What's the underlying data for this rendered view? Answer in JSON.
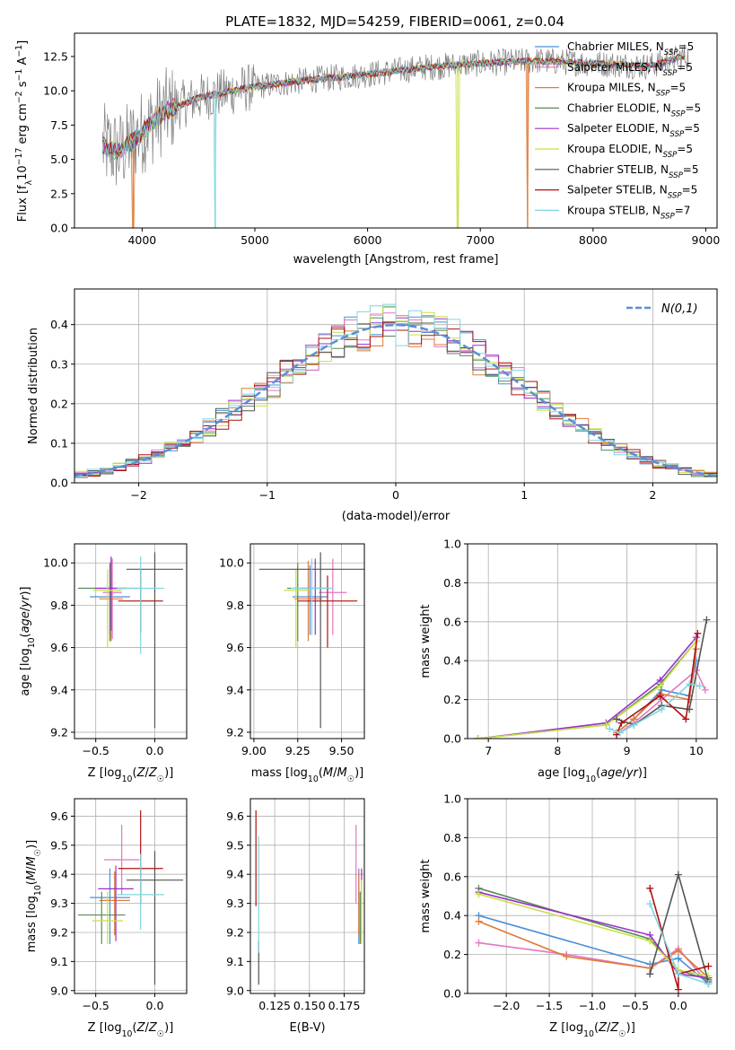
{
  "title": "PLATE=1832, MJD=54259, FIBERID=0061, z=0.04",
  "colors": {
    "Chabrier MILES": "#4a90d9",
    "Salpeter MILES": "#e377c2",
    "Kroupa MILES": "#e07b39",
    "Chabrier ELODIE": "#5a8a5a",
    "Salpeter ELODIE": "#9b30c8",
    "Kroupa ELODIE": "#c8e04a",
    "Chabrier STELIB": "#555555",
    "Salpeter STELIB": "#b01010",
    "Kroupa STELIB": "#7fd6df",
    "gaussian": "#5b8fd6"
  },
  "chart_data": [
    {
      "id": "spectrum",
      "type": "line",
      "xlabel": "wavelength [Angstrom, rest frame]",
      "ylabel": "Flux [f_λ 10^-17 erg cm^-2 s^-1 A^-1]",
      "xlim": [
        3400,
        9100
      ],
      "ylim": [
        0,
        14.2
      ],
      "xticks": [
        4000,
        5000,
        6000,
        7000,
        8000,
        9000
      ],
      "yticks": [
        0.0,
        2.5,
        5.0,
        7.5,
        10.0,
        12.5
      ],
      "legend_position": "top-right",
      "legend": [
        {
          "name": "Chabrier MILES",
          "nssp": "5"
        },
        {
          "name": "Salpeter MILES",
          "nssp": "5"
        },
        {
          "name": "Kroupa MILES",
          "nssp": "5"
        },
        {
          "name": "Chabrier ELODIE",
          "nssp": "5"
        },
        {
          "name": "Salpeter ELODIE",
          "nssp": "5"
        },
        {
          "name": "Kroupa ELODIE",
          "nssp": "5"
        },
        {
          "name": "Chabrier STELIB",
          "nssp": "5"
        },
        {
          "name": "Salpeter STELIB",
          "nssp": "5"
        },
        {
          "name": "Kroupa STELIB",
          "nssp": "7"
        }
      ],
      "data_trend": {
        "x": [
          3650,
          3800,
          4000,
          4200,
          4500,
          5000,
          5500,
          6000,
          6500,
          7000,
          7500,
          8000,
          8500,
          8800
        ],
        "y": [
          6.0,
          5.5,
          7.0,
          8.5,
          9.5,
          10.3,
          10.8,
          11.2,
          11.7,
          12.0,
          12.2,
          12.0,
          11.8,
          12.5
        ]
      },
      "model_dropouts": [
        {
          "series": "Kroupa MILES",
          "x": 3920
        },
        {
          "series": "Kroupa STELIB",
          "x": 4650
        },
        {
          "series": "Kroupa ELODIE",
          "x": 6800
        },
        {
          "series": "Kroupa MILES",
          "x": 7420
        }
      ]
    },
    {
      "id": "residuals",
      "type": "bar",
      "xlabel": "(data-model)/error",
      "ylabel": "Normed distribution",
      "xlim": [
        -2.5,
        2.5
      ],
      "ylim": [
        0,
        0.49
      ],
      "xticks": [
        -2,
        -1,
        0,
        1,
        2
      ],
      "yticks": [
        0.0,
        0.1,
        0.2,
        0.3,
        0.4
      ],
      "legend_label": "N(0,1)",
      "legend_position": "top-right"
    },
    {
      "id": "age-vs-Z",
      "type": "scatter",
      "xlabel": "Z [log10(Z/Z☉)]",
      "ylabel": "age  [log10(age/yr)]",
      "xlim": [
        -0.68,
        0.27
      ],
      "ylim": [
        9.17,
        10.09
      ],
      "xticks": [
        -0.5,
        0.0
      ],
      "yticks": [
        9.2,
        9.4,
        9.6,
        9.8,
        10.0
      ],
      "points": [
        {
          "series": "Chabrier MILES",
          "x": -0.38,
          "y": 9.84,
          "xerr": 0.17,
          "yerr": [
            0.18,
            0.15
          ]
        },
        {
          "series": "Salpeter MILES",
          "x": -0.36,
          "y": 9.86,
          "xerr": 0.08,
          "yerr": [
            0.22,
            0.16
          ]
        },
        {
          "series": "Kroupa MILES",
          "x": -0.37,
          "y": 9.83,
          "xerr": 0.1,
          "yerr": [
            0.2,
            0.18
          ]
        },
        {
          "series": "Chabrier ELODIE",
          "x": -0.38,
          "y": 9.88,
          "xerr": 0.27,
          "yerr": [
            0.25,
            0.12
          ]
        },
        {
          "series": "Salpeter ELODIE",
          "x": -0.37,
          "y": 9.88,
          "xerr": 0.13,
          "yerr": [
            0.2,
            0.15
          ]
        },
        {
          "series": "Kroupa ELODIE",
          "x": -0.4,
          "y": 9.87,
          "xerr": 0.12,
          "yerr": [
            0.27,
            0.1
          ]
        },
        {
          "series": "Chabrier STELIB",
          "x": 0.0,
          "y": 9.97,
          "xerr": 0.24,
          "yerr": [
            0.75,
            0.08
          ]
        },
        {
          "series": "Salpeter STELIB",
          "x": -0.12,
          "y": 9.82,
          "xerr": 0.19,
          "yerr": [
            0.15,
            0.15
          ]
        },
        {
          "series": "Kroupa STELIB",
          "x": -0.12,
          "y": 9.88,
          "xerr": 0.2,
          "yerr": [
            0.31,
            0.15
          ]
        }
      ]
    },
    {
      "id": "age-vs-mass",
      "type": "scatter",
      "xlabel": "mass [log10(M/M☉)]",
      "ylabel": "",
      "xlim": [
        8.98,
        9.63
      ],
      "ylim": [
        9.17,
        10.09
      ],
      "xticks": [
        9.0,
        9.25,
        9.5
      ],
      "yticks": [
        9.2,
        9.4,
        9.6,
        9.8,
        10.0
      ],
      "points": [
        {
          "series": "Chabrier MILES",
          "x": 9.32,
          "y": 9.84,
          "xerr": 0.1,
          "yerr": [
            0.18,
            0.15
          ]
        },
        {
          "series": "Salpeter MILES",
          "x": 9.45,
          "y": 9.86,
          "xerr": 0.08,
          "yerr": [
            0.2,
            0.16
          ]
        },
        {
          "series": "Kroupa MILES",
          "x": 9.31,
          "y": 9.83,
          "xerr": 0.08,
          "yerr": [
            0.2,
            0.18
          ]
        },
        {
          "series": "Chabrier ELODIE",
          "x": 9.25,
          "y": 9.88,
          "xerr": 0.06,
          "yerr": [
            0.25,
            0.12
          ]
        },
        {
          "series": "Salpeter ELODIE",
          "x": 9.35,
          "y": 9.88,
          "xerr": 0.08,
          "yerr": [
            0.22,
            0.14
          ]
        },
        {
          "series": "Kroupa ELODIE",
          "x": 9.24,
          "y": 9.87,
          "xerr": 0.07,
          "yerr": [
            0.27,
            0.1
          ]
        },
        {
          "series": "Chabrier STELIB",
          "x": 9.38,
          "y": 9.97,
          "xerr": 0.35,
          "yerr": [
            0.75,
            0.08
          ]
        },
        {
          "series": "Salpeter STELIB",
          "x": 9.42,
          "y": 9.82,
          "xerr": 0.17,
          "yerr": [
            0.22,
            0.12
          ]
        },
        {
          "series": "Kroupa STELIB",
          "x": 9.33,
          "y": 9.88,
          "xerr": 0.12,
          "yerr": [
            0.22,
            0.14
          ]
        }
      ]
    },
    {
      "id": "weight-vs-age",
      "type": "line",
      "xlabel": "age  [log10(age/yr)]",
      "ylabel": "mass weight",
      "xlim": [
        6.7,
        10.3
      ],
      "ylim": [
        0,
        1
      ],
      "xticks": [
        7,
        8,
        9,
        10
      ],
      "yticks": [
        0.0,
        0.2,
        0.4,
        0.6,
        0.8,
        1.0
      ],
      "series": [
        {
          "name": "Chabrier MILES",
          "x": [
            8.85,
            9.1,
            9.5,
            9.9,
            10.0
          ],
          "y": [
            0.03,
            0.1,
            0.25,
            0.22,
            0.4
          ]
        },
        {
          "name": "Salpeter MILES",
          "x": [
            8.85,
            9.1,
            9.5,
            10.0,
            10.13
          ],
          "y": [
            0.02,
            0.08,
            0.2,
            0.35,
            0.25
          ]
        },
        {
          "name": "Kroupa MILES",
          "x": [
            8.85,
            9.1,
            9.48,
            9.9,
            10.0
          ],
          "y": [
            0.03,
            0.1,
            0.23,
            0.2,
            0.46
          ]
        },
        {
          "name": "Chabrier ELODIE",
          "x": [
            6.85,
            8.7,
            9.48,
            10.0
          ],
          "y": [
            0.0,
            0.07,
            0.28,
            0.5
          ]
        },
        {
          "name": "Salpeter ELODIE",
          "x": [
            6.85,
            8.7,
            9.48,
            10.0
          ],
          "y": [
            0.0,
            0.08,
            0.3,
            0.52
          ]
        },
        {
          "name": "Kroupa ELODIE",
          "x": [
            6.85,
            8.7,
            9.48,
            10.0
          ],
          "y": [
            0.0,
            0.07,
            0.27,
            0.5
          ]
        },
        {
          "name": "Chabrier STELIB",
          "x": [
            8.85,
            9.1,
            9.5,
            9.9,
            10.15
          ],
          "y": [
            0.1,
            0.07,
            0.17,
            0.15,
            0.61
          ]
        },
        {
          "name": "Salpeter STELIB",
          "x": [
            8.85,
            8.92,
            9.48,
            9.85,
            10.02
          ],
          "y": [
            0.02,
            0.08,
            0.22,
            0.1,
            0.54
          ]
        },
        {
          "name": "Kroupa STELIB",
          "x": [
            8.75,
            8.9,
            9.1,
            9.5,
            9.9,
            10.05
          ],
          "y": [
            0.05,
            0.03,
            0.07,
            0.15,
            0.28,
            0.27
          ]
        }
      ]
    },
    {
      "id": "mass-vs-Z",
      "type": "scatter",
      "xlabel": "Z [log10(Z/Z☉)]",
      "ylabel": "mass [log10(M/M☉)]",
      "xlim": [
        -0.68,
        0.27
      ],
      "ylim": [
        8.99,
        9.66
      ],
      "xticks": [
        -0.5,
        0.0
      ],
      "yticks": [
        9.0,
        9.1,
        9.2,
        9.3,
        9.4,
        9.5,
        9.6
      ],
      "points": [
        {
          "series": "Chabrier MILES",
          "x": -0.38,
          "y": 9.32,
          "xerr": 0.17,
          "yerr": [
            0.16,
            0.1
          ]
        },
        {
          "series": "Salpeter MILES",
          "x": -0.28,
          "y": 9.45,
          "xerr": 0.15,
          "yerr": [
            0.12,
            0.12
          ]
        },
        {
          "series": "Kroupa MILES",
          "x": -0.34,
          "y": 9.31,
          "xerr": 0.13,
          "yerr": [
            0.12,
            0.1
          ]
        },
        {
          "series": "Chabrier ELODIE",
          "x": -0.45,
          "y": 9.26,
          "xerr": 0.2,
          "yerr": [
            0.1,
            0.08
          ]
        },
        {
          "series": "Salpeter ELODIE",
          "x": -0.33,
          "y": 9.35,
          "xerr": 0.15,
          "yerr": [
            0.18,
            0.08
          ]
        },
        {
          "series": "Kroupa ELODIE",
          "x": -0.4,
          "y": 9.24,
          "xerr": 0.13,
          "yerr": [
            0.08,
            0.1
          ]
        },
        {
          "series": "Chabrier STELIB",
          "x": 0.0,
          "y": 9.38,
          "xerr": 0.24,
          "yerr": [
            0.36,
            0.1
          ]
        },
        {
          "series": "Salpeter STELIB",
          "x": -0.12,
          "y": 9.42,
          "xerr": 0.19,
          "yerr": [
            0.12,
            0.2
          ]
        },
        {
          "series": "Kroupa STELIB",
          "x": -0.12,
          "y": 9.33,
          "xerr": 0.2,
          "yerr": [
            0.12,
            0.14
          ]
        }
      ]
    },
    {
      "id": "mass-vs-ebv",
      "type": "scatter",
      "xlabel": "E(B-V)",
      "ylabel": "",
      "xlim": [
        0.1075,
        0.1895
      ],
      "ylim": [
        8.99,
        9.66
      ],
      "xticks": [
        0.125,
        0.15,
        0.175
      ],
      "xticklabels": [
        "0.125",
        "0.150",
        "0.175"
      ],
      "yticks": [
        9.0,
        9.1,
        9.2,
        9.3,
        9.4,
        9.5,
        9.6
      ],
      "points": [
        {
          "series": "Chabrier MILES",
          "x": 0.1855,
          "y": 9.32,
          "xerr": 0.0,
          "yerr": [
            0.16,
            0.1
          ]
        },
        {
          "series": "Salpeter MILES",
          "x": 0.1835,
          "y": 9.45,
          "xerr": 0.0,
          "yerr": [
            0.15,
            0.12
          ]
        },
        {
          "series": "Kroupa MILES",
          "x": 0.1855,
          "y": 9.31,
          "xerr": 0.0,
          "yerr": [
            0.12,
            0.1
          ]
        },
        {
          "series": "Chabrier ELODIE",
          "x": 0.1865,
          "y": 9.26,
          "xerr": 0.0,
          "yerr": [
            0.1,
            0.08
          ]
        },
        {
          "series": "Salpeter ELODIE",
          "x": 0.1875,
          "y": 9.35,
          "xerr": 0.0,
          "yerr": [
            0.18,
            0.07
          ]
        },
        {
          "series": "Kroupa ELODIE",
          "x": 0.1875,
          "y": 9.24,
          "xerr": 0.0,
          "yerr": [
            0.08,
            0.14
          ]
        },
        {
          "series": "Chabrier STELIB",
          "x": 0.1135,
          "y": 9.1,
          "xerr": 0.0,
          "yerr": [
            0.08,
            0.07
          ]
        },
        {
          "series": "Salpeter STELIB",
          "x": 0.1115,
          "y": 9.45,
          "xerr": 0.0,
          "yerr": [
            0.16,
            0.17
          ]
        },
        {
          "series": "Kroupa STELIB",
          "x": 0.1135,
          "y": 9.33,
          "xerr": 0.0,
          "yerr": [
            0.2,
            0.2
          ]
        }
      ]
    },
    {
      "id": "weight-vs-Z",
      "type": "line",
      "xlabel": "Z [log10(Z/Z☉)]",
      "ylabel": "mass weight",
      "xlim": [
        -2.45,
        0.45
      ],
      "ylim": [
        0,
        1
      ],
      "xticks": [
        -2.0,
        -1.5,
        -1.0,
        -0.5,
        0.0
      ],
      "yticks": [
        0.0,
        0.2,
        0.4,
        0.6,
        0.8,
        1.0
      ],
      "series": [
        {
          "name": "Chabrier MILES",
          "x": [
            -2.32,
            -0.33,
            0.0,
            0.35
          ],
          "y": [
            0.4,
            0.15,
            0.18,
            0.05
          ]
        },
        {
          "name": "Salpeter MILES",
          "x": [
            -2.32,
            -1.3,
            -0.33,
            0.0,
            0.35
          ],
          "y": [
            0.26,
            0.2,
            0.13,
            0.23,
            0.05
          ]
        },
        {
          "name": "Kroupa MILES",
          "x": [
            -2.32,
            -1.3,
            -0.33,
            0.0,
            0.35
          ],
          "y": [
            0.37,
            0.19,
            0.13,
            0.22,
            0.08
          ]
        },
        {
          "name": "Chabrier ELODIE",
          "x": [
            -2.32,
            -0.33,
            0.0,
            0.35
          ],
          "y": [
            0.54,
            0.28,
            0.12,
            0.07
          ]
        },
        {
          "name": "Salpeter ELODIE",
          "x": [
            -2.32,
            -0.33,
            0.0,
            0.35
          ],
          "y": [
            0.52,
            0.3,
            0.1,
            0.08
          ]
        },
        {
          "name": "Kroupa ELODIE",
          "x": [
            -2.32,
            -0.33,
            0.0,
            0.35
          ],
          "y": [
            0.51,
            0.27,
            0.12,
            0.09
          ]
        },
        {
          "name": "Chabrier STELIB",
          "x": [
            -0.33,
            0.0,
            0.35
          ],
          "y": [
            0.1,
            0.61,
            0.06
          ]
        },
        {
          "name": "Salpeter STELIB",
          "x": [
            -0.33,
            0.0,
            0.0,
            0.35
          ],
          "y": [
            0.54,
            0.02,
            0.1,
            0.14
          ]
        },
        {
          "name": "Kroupa STELIB",
          "x": [
            -0.33,
            0.0,
            0.35
          ],
          "y": [
            0.46,
            0.1,
            0.05
          ]
        }
      ]
    }
  ]
}
